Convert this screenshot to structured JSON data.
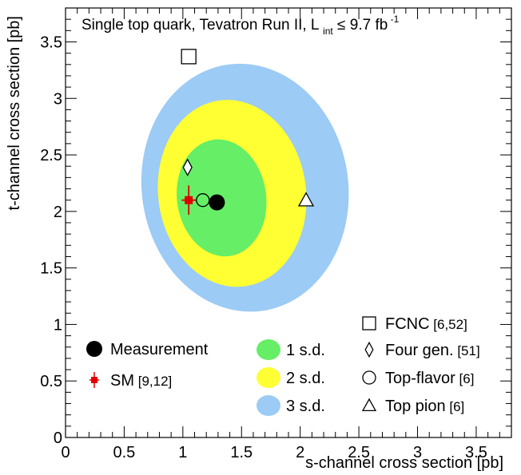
{
  "chart_data": {
    "type": "scatter",
    "title": "Single top quark, Tevatron Run II, L",
    "title_sub": "int",
    "title_rel": "≤ 9.7 fb",
    "title_sup": "-1",
    "xlabel": "s-channel cross section [pb]",
    "ylabel": "t-channel cross section [pb]",
    "xlim": [
      0,
      3.8
    ],
    "ylim": [
      0,
      3.8
    ],
    "x_ticks": [
      "0",
      "0.5",
      "1",
      "1.5",
      "2",
      "2.5",
      "3",
      "3.5"
    ],
    "y_ticks": [
      "0",
      "0.5",
      "1",
      "1.5",
      "2",
      "2.5",
      "3",
      "3.5"
    ],
    "measurement": {
      "x": 1.29,
      "y": 2.08
    },
    "sm": {
      "x": 1.05,
      "y": 2.1,
      "x_err": 0.06,
      "y_err": 0.13
    },
    "contours": [
      {
        "name": "3 s.d.",
        "color": "#9ccbf5",
        "cx": 1.53,
        "cy": 2.21,
        "rx": 0.88,
        "ry": 1.1
      },
      {
        "name": "2 s.d.",
        "color": "#ffff33",
        "cx": 1.42,
        "cy": 2.16,
        "rx": 0.63,
        "ry": 0.83
      },
      {
        "name": "1 s.d.",
        "color": "#66ee66",
        "cx": 1.33,
        "cy": 2.12,
        "rx": 0.38,
        "ry": 0.52
      }
    ],
    "models": [
      {
        "name": "FCNC",
        "ref": "[6,52]",
        "marker": "square",
        "x": 1.05,
        "y": 3.37
      },
      {
        "name": "Four gen.",
        "ref": "[51]",
        "marker": "diamond",
        "x": 1.04,
        "y": 2.39
      },
      {
        "name": "Top-flavor",
        "ref": "[6]",
        "marker": "circle",
        "x": 1.17,
        "y": 2.1
      },
      {
        "name": "Top pion",
        "ref": "[6]",
        "marker": "triangle",
        "x": 2.05,
        "y": 2.1
      }
    ],
    "legend_left": [
      {
        "label": "Measurement",
        "ref": "",
        "marker": "filled-circle"
      },
      {
        "label": "SM",
        "ref": "[9,12]",
        "marker": "red-cross"
      }
    ],
    "legend_mid": [
      "1 s.d.",
      "2 s.d.",
      "3 s.d."
    ]
  }
}
